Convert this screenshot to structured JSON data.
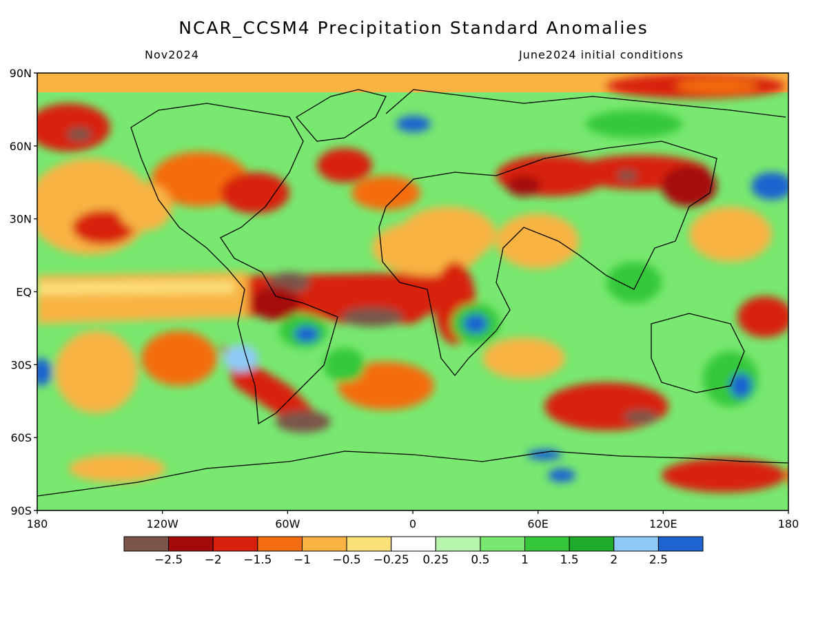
{
  "title": "NCAR_CCSM4 Precipitation Standard Anomalies",
  "subtitle_left": "Nov2024",
  "subtitle_right": "June2024 initial conditions",
  "map": {
    "lat_labels": [
      "90N",
      "60N",
      "30N",
      "EQ",
      "30S",
      "60S",
      "90S"
    ],
    "lon_labels": [
      "180",
      "120W",
      "60W",
      "0",
      "60E",
      "120E",
      "180"
    ]
  },
  "colorbar": {
    "colors": [
      "#7a5548",
      "#a50a0a",
      "#d8200f",
      "#f46d10",
      "#f8b342",
      "#fbe07a",
      "#ffffff",
      "#b8f5ac",
      "#78e870",
      "#36c83a",
      "#1eaa2a",
      "#8ecaf5",
      "#1d64d0"
    ],
    "labels": [
      "−2.5",
      "−2",
      "−1.5",
      "−1",
      "−0.5",
      "−0.25",
      "0.25",
      "0.5",
      "1",
      "1.5",
      "2",
      "2.5"
    ]
  },
  "colors": {
    "ocean_band_orange": "#f8b342",
    "dry_red": "#d8200f",
    "wet_green": "#36c83a",
    "wet_blue": "#1d64d0"
  }
}
